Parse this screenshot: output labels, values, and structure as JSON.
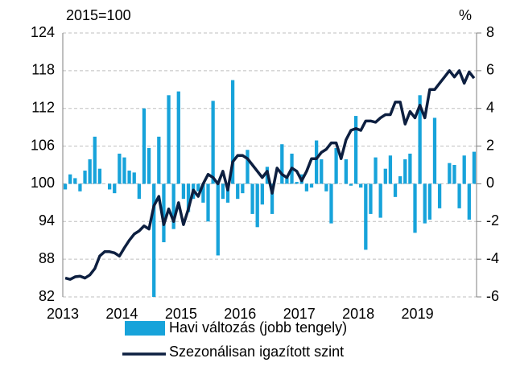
{
  "chart_data": {
    "type": "bar",
    "unit_left": "2015=100",
    "unit_right": "%",
    "categories": [
      "2013",
      null,
      null,
      null,
      null,
      null,
      null,
      null,
      null,
      null,
      null,
      null,
      "2014",
      null,
      null,
      null,
      null,
      null,
      null,
      null,
      null,
      null,
      null,
      null,
      "2015",
      null,
      null,
      null,
      null,
      null,
      null,
      null,
      null,
      null,
      null,
      null,
      "2016",
      null,
      null,
      null,
      null,
      null,
      null,
      null,
      null,
      null,
      null,
      null,
      "2017",
      null,
      null,
      null,
      null,
      null,
      null,
      null,
      null,
      null,
      null,
      null,
      "2018",
      null,
      null,
      null,
      null,
      null,
      null,
      null,
      null,
      null,
      null,
      null,
      "2019",
      null,
      null,
      null,
      null,
      null,
      null,
      null,
      null,
      null,
      null,
      null
    ],
    "ylim": [
      82,
      124
    ],
    "yticks": [
      82,
      88,
      94,
      100,
      106,
      112,
      118,
      124
    ],
    "y2lim": [
      -6,
      8
    ],
    "y2ticks": [
      -6,
      -4,
      -2,
      0,
      2,
      4,
      6,
      8
    ],
    "grid": true,
    "series": [
      {
        "name": "Havi változás (jobb tengely)",
        "type": "bar",
        "axis": "y2",
        "color": "#17a3da",
        "values": [
          -0.3,
          0.5,
          0.3,
          -0.4,
          0.7,
          1.3,
          2.5,
          0.8,
          0,
          -0.3,
          -0.5,
          1.6,
          1.4,
          0.7,
          0.6,
          -0.8,
          4,
          1.9,
          -6,
          2.5,
          -3.1,
          4.7,
          -2.4,
          4.9,
          -0.8,
          -1.5,
          -0.8,
          -0.4,
          -1,
          -2,
          4.4,
          -3.8,
          -0.8,
          -1,
          5.5,
          -0.8,
          -0.5,
          1.8,
          -1.6,
          -2.3,
          -1.1,
          0.9,
          -1.6,
          0,
          2.1,
          0.4,
          1.6,
          0.1,
          0.5,
          -0.4,
          -0.2,
          2.3,
          1.3,
          -0.4,
          -2.1,
          1.9,
          0,
          1.3,
          -0.1,
          3.6,
          -0.2,
          -3.5,
          -1.6,
          1.4,
          -1.8,
          0.8,
          1.5,
          -0.7,
          0.4,
          1.3,
          1.6,
          -2.6,
          4.7,
          -2.1,
          -1.9,
          3.5,
          -1.3,
          0,
          1.1,
          1,
          -1.3,
          1.5,
          -1.9,
          1.7
        ]
      },
      {
        "name": "Szezonálisan igazított szint",
        "type": "line",
        "axis": "y",
        "color": "#0d1f40",
        "values": [
          85,
          84.8,
          85.2,
          85.3,
          85,
          85.5,
          86.5,
          88.5,
          89.2,
          89.2,
          89,
          88.5,
          89.8,
          91,
          92,
          92.5,
          93.3,
          92.8,
          96.5,
          98,
          93.5,
          96,
          94,
          97,
          93.5,
          96,
          99,
          98,
          100,
          101.5,
          101,
          100,
          102,
          99,
          103.5,
          104.5,
          104.5,
          104,
          103,
          102,
          101,
          102,
          98.5,
          102.5,
          101.5,
          101,
          102.5,
          102,
          100.5,
          102,
          104,
          104,
          105,
          105.5,
          106.5,
          106.5,
          104,
          107,
          108.5,
          108.8,
          108.5,
          110,
          110,
          109.8,
          110.5,
          111,
          111,
          113,
          113,
          109.5,
          111.5,
          110.5,
          112.5,
          110.5,
          115,
          115,
          116,
          117,
          118,
          117,
          118,
          116,
          117.8,
          116.8
        ]
      }
    ]
  }
}
